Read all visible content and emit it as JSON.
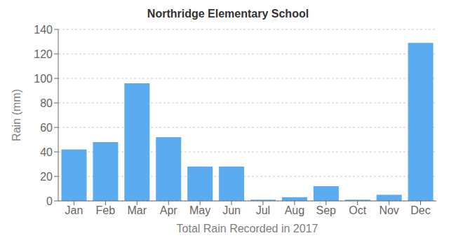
{
  "chart_data": {
    "type": "bar",
    "title": "Northridge Elementary School",
    "xlabel": "Total Rain Recorded in 2017",
    "ylabel": "Rain (mm)",
    "categories": [
      "Jan",
      "Feb",
      "Mar",
      "Apr",
      "May",
      "Jun",
      "Jul",
      "Aug",
      "Sep",
      "Oct",
      "Nov",
      "Dec"
    ],
    "values": [
      42,
      48,
      96,
      52,
      28,
      28,
      1,
      3,
      12,
      1,
      5,
      129
    ],
    "color": "#5aabf0",
    "ylim": [
      0,
      140
    ],
    "yticks": [
      0,
      20,
      40,
      60,
      80,
      100,
      120,
      140
    ],
    "grid": true
  }
}
